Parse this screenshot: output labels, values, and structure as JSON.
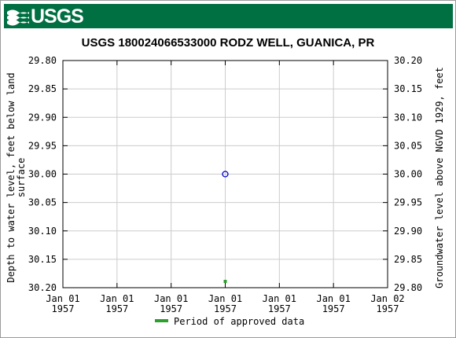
{
  "header": {
    "logo_text": "USGS",
    "logo_icon": "usgs-wave-icon",
    "brand_color": "#006f41"
  },
  "chart_data": {
    "type": "scatter",
    "title": "USGS 180024066533000 RODZ WELL, GUANICA, PR",
    "ylabel_left": "Depth to water level, feet below land surface",
    "ylabel_right": "Groundwater level above NGVD 1929, feet",
    "y_left_ticks": [
      "29.80",
      "29.85",
      "29.90",
      "29.95",
      "30.00",
      "30.05",
      "30.10",
      "30.15",
      "30.20"
    ],
    "y_right_ticks": [
      "30.20",
      "30.15",
      "30.10",
      "30.05",
      "30.00",
      "29.95",
      "29.90",
      "29.85",
      "29.80"
    ],
    "ylim_left": [
      29.8,
      30.2
    ],
    "y_left_inverted": true,
    "x_ticks": [
      {
        "line1": "Jan 01",
        "line2": "1957"
      },
      {
        "line1": "Jan 01",
        "line2": "1957"
      },
      {
        "line1": "Jan 01",
        "line2": "1957"
      },
      {
        "line1": "Jan 01",
        "line2": "1957"
      },
      {
        "line1": "Jan 01",
        "line2": "1957"
      },
      {
        "line1": "Jan 01",
        "line2": "1957"
      },
      {
        "line1": "Jan 02",
        "line2": "1957"
      }
    ],
    "xlim": [
      "1957-01-01T00:00",
      "1957-01-02T00:00"
    ],
    "grid": true,
    "series": [
      {
        "type": "scatter",
        "marker": "open-circle",
        "color": "#0000cc",
        "points": [
          {
            "x": "1957-01-01T12:00",
            "y": 30.0
          }
        ]
      },
      {
        "name": "Period of approved data",
        "type": "period-bar",
        "color": "#2ca02c",
        "points": [
          {
            "x": "1957-01-01T12:00"
          }
        ]
      }
    ],
    "legend": {
      "position": "bottom",
      "items": [
        {
          "label": "Period of approved data",
          "color": "#2ca02c"
        }
      ]
    }
  }
}
